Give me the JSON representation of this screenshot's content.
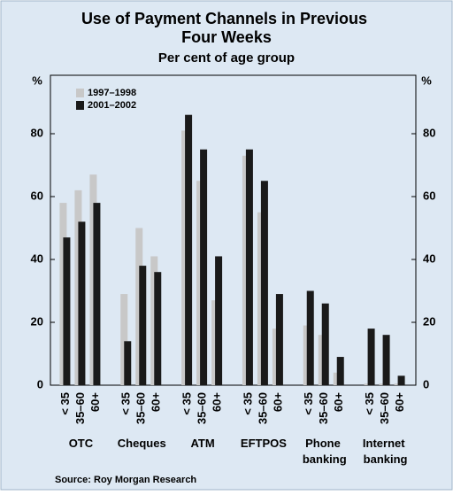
{
  "chart_data": {
    "type": "grouped_bar",
    "title": "Use of Payment Channels in Previous Four Weeks",
    "subtitle": "Per cent of age group",
    "y_unit": "%",
    "groups": [
      "OTC",
      "Cheques",
      "ATM",
      "EFTPOS",
      "Phone banking",
      "Internet banking"
    ],
    "categories": [
      "< 35",
      "35–60",
      "60+",
      "< 35",
      "35–60",
      "60+",
      "< 35",
      "35–60",
      "60+",
      "< 35",
      "35–60",
      "60+",
      "< 35",
      "35–60",
      "60+",
      "< 35",
      "35–60",
      "60+"
    ],
    "series": [
      {
        "name": "1997–1998",
        "color": "#c8c8c8",
        "values": [
          58,
          62,
          67,
          29,
          50,
          41,
          81,
          65,
          27,
          73,
          55,
          18,
          19,
          16,
          4,
          0.5,
          0.5,
          0.5
        ]
      },
      {
        "name": "2001–2002",
        "color": "#1a1a1a",
        "values": [
          47,
          52,
          58,
          14,
          38,
          36,
          86,
          75,
          41,
          75,
          65,
          29,
          30,
          26,
          9,
          18,
          16,
          3
        ]
      }
    ],
    "ylim": [
      0,
      100
    ],
    "yticks": [
      0,
      20,
      40,
      60,
      80
    ],
    "legend": "upper left",
    "source": "Source: Roy Morgan Research"
  }
}
